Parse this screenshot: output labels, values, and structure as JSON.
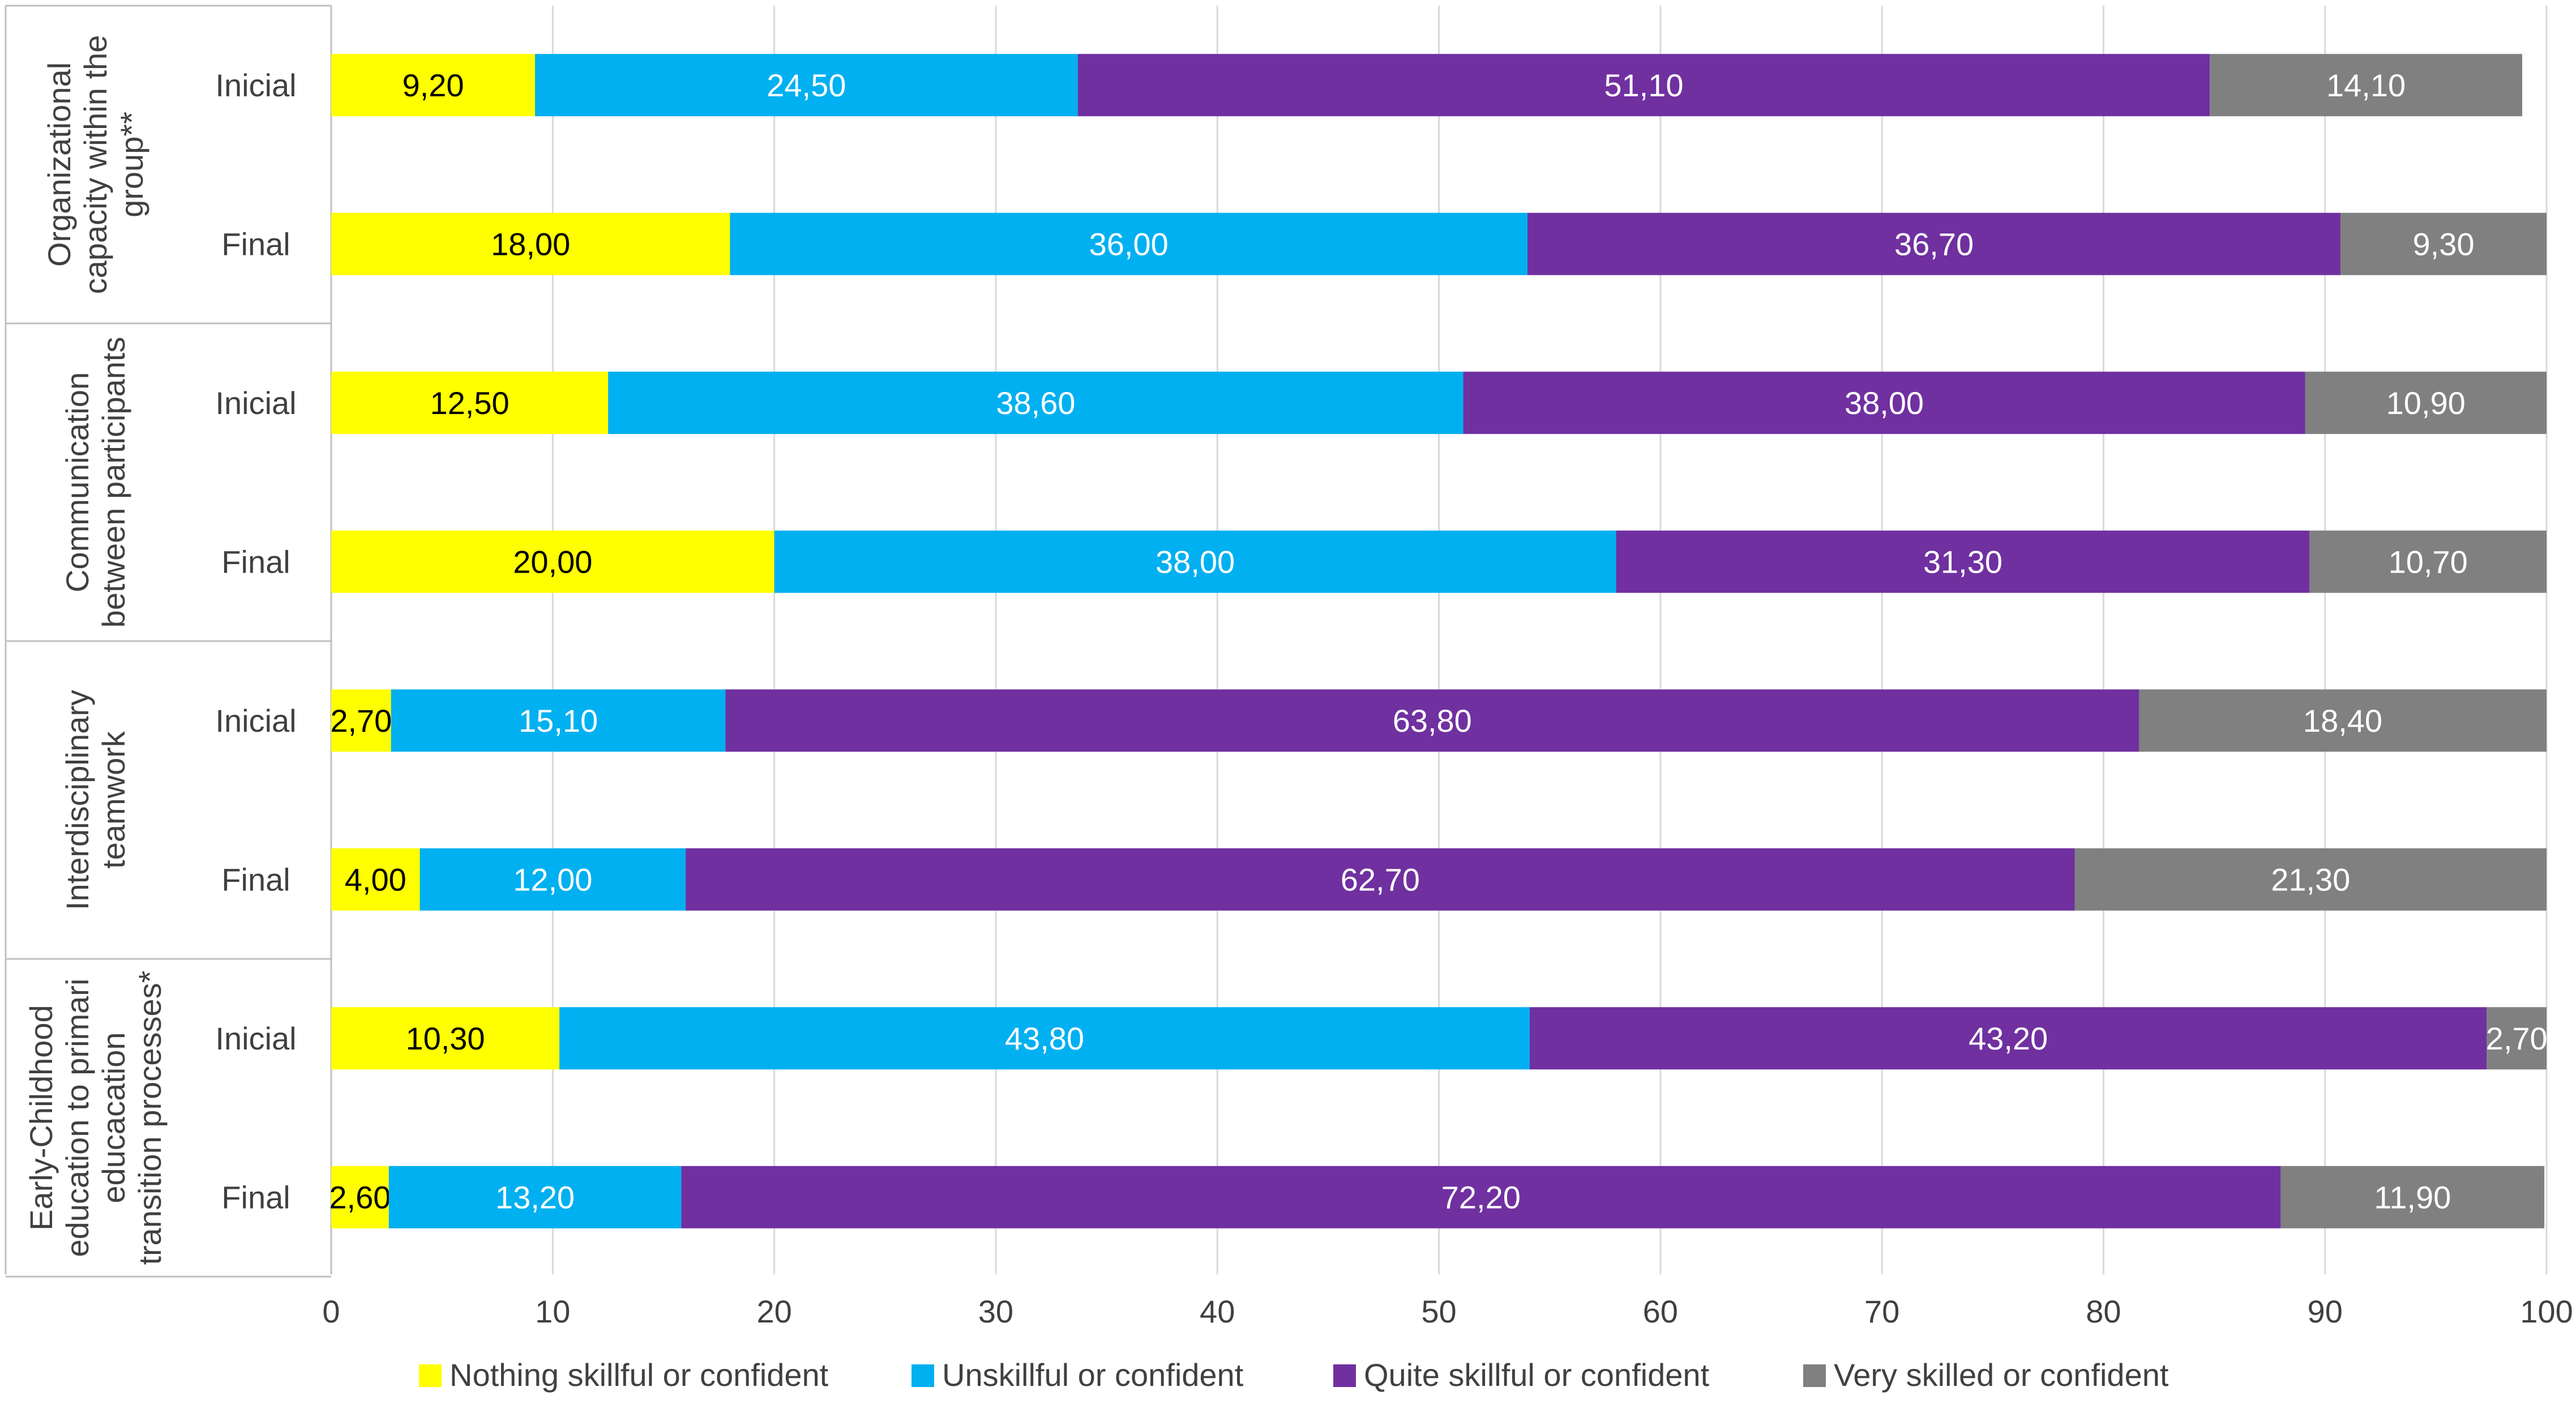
{
  "chart_data": {
    "type": "bar",
    "orientation": "horizontal",
    "stacked": true,
    "groups": [
      {
        "label": "Organizational capacity within the group**",
        "label_lines": [
          "Organizational",
          "capacity within the",
          "group**"
        ],
        "rows": [
          {
            "label": "Inicial",
            "values": [
              9.2,
              24.5,
              51.1,
              14.1
            ],
            "labels": [
              "9,20",
              "24,50",
              "51,10",
              "14,10"
            ]
          },
          {
            "label": "Final",
            "values": [
              18.0,
              36.0,
              36.7,
              9.3
            ],
            "labels": [
              "18,00",
              "36,00",
              "36,70",
              "9,30"
            ]
          }
        ]
      },
      {
        "label": "Communication between participants",
        "label_lines": [
          "Communication",
          "between participants"
        ],
        "rows": [
          {
            "label": "Inicial",
            "values": [
              12.5,
              38.6,
              38.0,
              10.9
            ],
            "labels": [
              "12,50",
              "38,60",
              "38,00",
              "10,90"
            ]
          },
          {
            "label": "Final",
            "values": [
              20.0,
              38.0,
              31.3,
              10.7
            ],
            "labels": [
              "20,00",
              "38,00",
              "31,30",
              "10,70"
            ]
          }
        ]
      },
      {
        "label": "Interdisciplinary teamwork",
        "label_lines": [
          "Interdisciplinary",
          "teamwork"
        ],
        "rows": [
          {
            "label": "Inicial",
            "values": [
              2.7,
              15.1,
              63.8,
              18.4
            ],
            "labels": [
              "2,70",
              "15,10",
              "63,80",
              "18,40"
            ]
          },
          {
            "label": "Final",
            "values": [
              4.0,
              12.0,
              62.7,
              21.3
            ],
            "labels": [
              "4,00",
              "12,00",
              "62,70",
              "21,30"
            ]
          }
        ]
      },
      {
        "label": "Early-Childhood education to primari educacation transition processes*",
        "label_lines": [
          "Early-Childhood",
          "education to primari",
          "educacation",
          "transition processes*"
        ],
        "rows": [
          {
            "label": "Inicial",
            "values": [
              10.3,
              43.8,
              43.2,
              2.7
            ],
            "labels": [
              "10,30",
              "43,80",
              "43,20",
              "2,70"
            ]
          },
          {
            "label": "Final",
            "values": [
              2.6,
              13.2,
              72.2,
              11.9
            ],
            "labels": [
              "2,60",
              "13,20",
              "72,20",
              "11,90"
            ]
          }
        ]
      }
    ],
    "series": [
      {
        "name": "Nothing skillful or confident",
        "color": "#FFFF00",
        "label_color": "#000000"
      },
      {
        "name": "Unskillful or confident",
        "color": "#00B0F0",
        "label_color": "#FFFFFF"
      },
      {
        "name": "Quite skillful or confident",
        "color": "#7030A0",
        "label_color": "#FFFFFF"
      },
      {
        "name": "Very skilled or confident",
        "color": "#808080",
        "label_color": "#FFFFFF"
      }
    ],
    "xlim": [
      0,
      100
    ],
    "xticks": [
      0,
      10,
      20,
      30,
      40,
      50,
      60,
      70,
      80,
      90,
      100
    ],
    "grid": true,
    "legend_position": "bottom"
  }
}
